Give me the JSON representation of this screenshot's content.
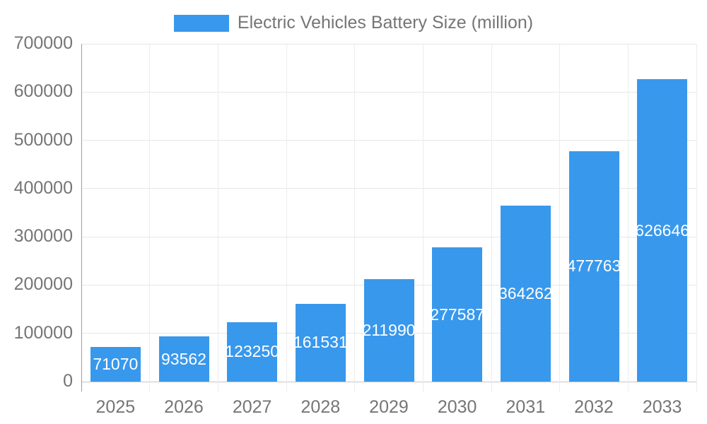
{
  "chart_data": {
    "type": "bar",
    "title": "Electric Vehicles Battery Size (million)",
    "categories": [
      "2025",
      "2026",
      "2027",
      "2028",
      "2029",
      "2030",
      "2031",
      "2032",
      "2033"
    ],
    "values": [
      71070,
      93562,
      123250,
      161531,
      211990,
      277587,
      364262,
      477763,
      626646
    ],
    "series": [
      {
        "name": "Electric Vehicles Battery Size (million)",
        "values": [
          71070,
          93562,
          123250,
          161531,
          211990,
          277587,
          364262,
          477763,
          626646
        ]
      }
    ],
    "xlabel": "",
    "ylabel": "",
    "ylim": [
      0,
      700000
    ],
    "yticks": [
      0,
      100000,
      200000,
      300000,
      400000,
      500000,
      600000,
      700000
    ],
    "grid": true,
    "legend_position": "top",
    "value_label_style": "white, centered inside bar, clipped to bar width"
  },
  "colors": {
    "bar": "#3898ec",
    "axis_text": "#757575",
    "title_text": "#757575",
    "gridline": "#e7e7e7",
    "vertical_gridline": "#ececec",
    "baseline": "#c7c7c7",
    "axis_line": "#9e9e9e",
    "value_label": "#ffffff",
    "background": "#ffffff"
  }
}
